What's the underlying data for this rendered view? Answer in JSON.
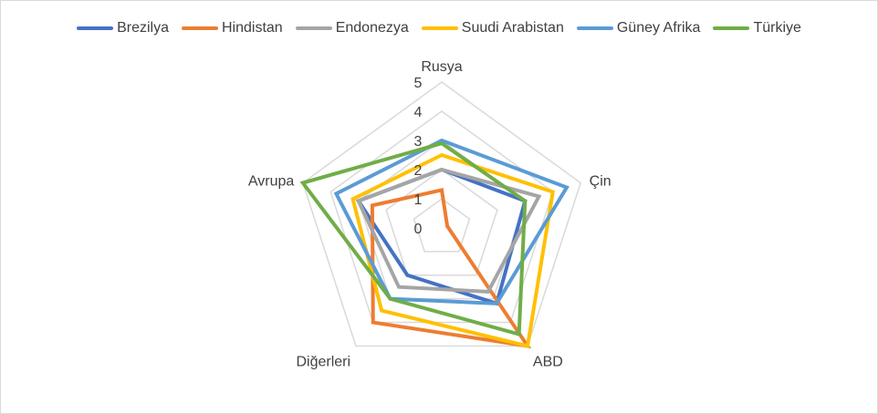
{
  "chart_data": {
    "type": "radar",
    "axes": [
      "Rusya",
      "Çin",
      "ABD",
      "Diğerleri",
      "Avrupa"
    ],
    "ticks": [
      "0",
      "1",
      "2",
      "3",
      "4",
      "5"
    ],
    "range": [
      0,
      5
    ],
    "legend_position": "top",
    "grid": true,
    "series": [
      {
        "name": "Brezilya",
        "color": "#4472C4",
        "values": [
          2.0,
          3.0,
          3.2,
          2.0,
          3.0
        ]
      },
      {
        "name": "Hindistan",
        "color": "#ED7D31",
        "values": [
          1.3,
          0.2,
          5.0,
          4.0,
          2.5
        ]
      },
      {
        "name": "Endonezya",
        "color": "#A5A5A5",
        "values": [
          2.0,
          3.5,
          2.7,
          2.5,
          3.0
        ]
      },
      {
        "name": "Suudi Arabistan",
        "color": "#FFC000",
        "values": [
          2.5,
          4.0,
          5.0,
          3.5,
          3.2
        ]
      },
      {
        "name": "Güney Afrika",
        "color": "#5B9BD5",
        "values": [
          3.0,
          4.5,
          3.2,
          3.0,
          3.8
        ]
      },
      {
        "name": "Türkiye",
        "color": "#70AD47",
        "values": [
          2.9,
          3.0,
          4.5,
          3.0,
          5.0
        ]
      }
    ]
  }
}
